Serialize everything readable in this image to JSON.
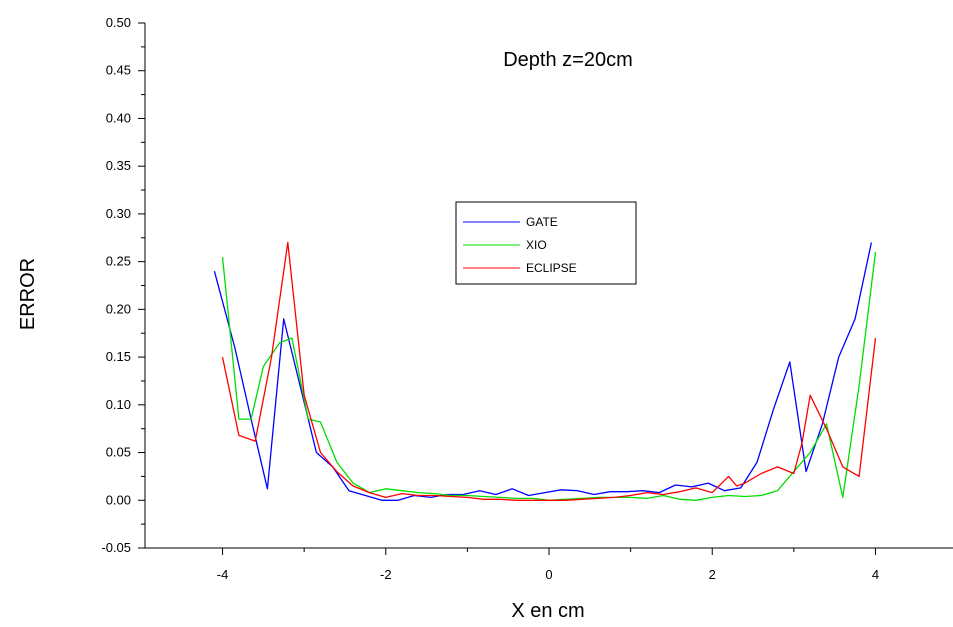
{
  "chart_data": {
    "type": "line",
    "annotation": "Depth z=20cm",
    "xlabel": "X en cm",
    "ylabel": "ERROR",
    "xlim": [
      -4.95,
      4.95
    ],
    "ylim": [
      -0.05,
      0.5
    ],
    "xticks": [
      -4,
      -2,
      0,
      2,
      4
    ],
    "xtick_labels": [
      "-4",
      "-2",
      "0",
      "2",
      "4"
    ],
    "yticks": [
      -0.05,
      0.0,
      0.05,
      0.1,
      0.15,
      0.2,
      0.25,
      0.3,
      0.35,
      0.4,
      0.45,
      0.5
    ],
    "ytick_labels": [
      "-0.05",
      "0.00",
      "0.05",
      "0.10",
      "0.15",
      "0.20",
      "0.25",
      "0.30",
      "0.35",
      "0.40",
      "0.45",
      "0.50"
    ],
    "grid": false,
    "legend_position": "center",
    "series": [
      {
        "name": "GATE",
        "color": "#0000ff",
        "x": [
          -4.1,
          -3.85,
          -3.65,
          -3.45,
          -3.25,
          -3.05,
          -2.85,
          -2.65,
          -2.45,
          -2.25,
          -2.05,
          -1.85,
          -1.65,
          -1.45,
          -1.25,
          -1.05,
          -0.85,
          -0.65,
          -0.45,
          -0.25,
          -0.05,
          0.15,
          0.35,
          0.55,
          0.75,
          0.95,
          1.15,
          1.35,
          1.55,
          1.75,
          1.95,
          2.15,
          2.35,
          2.55,
          2.75,
          2.95,
          3.15,
          3.35,
          3.55,
          3.75,
          3.95
        ],
        "y": [
          0.24,
          0.16,
          0.085,
          0.012,
          0.19,
          0.12,
          0.05,
          0.035,
          0.01,
          0.005,
          0.0,
          0.0,
          0.005,
          0.003,
          0.006,
          0.006,
          0.01,
          0.006,
          0.012,
          0.005,
          0.008,
          0.011,
          0.01,
          0.006,
          0.009,
          0.009,
          0.01,
          0.008,
          0.016,
          0.014,
          0.018,
          0.01,
          0.013,
          0.04,
          0.095,
          0.145,
          0.03,
          0.08,
          0.15,
          0.19,
          0.27
        ]
      },
      {
        "name": "XIO",
        "color": "#00dd00",
        "x": [
          -4.0,
          -3.8,
          -3.65,
          -3.5,
          -3.3,
          -3.15,
          -2.95,
          -2.8,
          -2.6,
          -2.4,
          -2.2,
          -2.0,
          -1.8,
          -1.6,
          -1.4,
          -1.2,
          -1.0,
          -0.8,
          -0.6,
          -0.4,
          -0.2,
          0.0,
          0.2,
          0.4,
          0.6,
          0.8,
          1.0,
          1.2,
          1.4,
          1.6,
          1.8,
          2.0,
          2.2,
          2.4,
          2.6,
          2.8,
          3.0,
          3.2,
          3.4,
          3.6,
          3.8,
          4.0
        ],
        "y": [
          0.255,
          0.085,
          0.085,
          0.14,
          0.165,
          0.17,
          0.085,
          0.082,
          0.04,
          0.018,
          0.008,
          0.012,
          0.01,
          0.008,
          0.007,
          0.005,
          0.005,
          0.004,
          0.003,
          0.002,
          0.002,
          0.0,
          0.001,
          0.002,
          0.003,
          0.003,
          0.003,
          0.002,
          0.005,
          0.001,
          0.0,
          0.003,
          0.005,
          0.004,
          0.005,
          0.01,
          0.03,
          0.05,
          0.08,
          0.003,
          0.12,
          0.26
        ]
      },
      {
        "name": "ECLIPSE",
        "color": "#ff0000",
        "x": [
          -4.0,
          -3.8,
          -3.6,
          -3.4,
          -3.2,
          -3.0,
          -2.8,
          -2.6,
          -2.4,
          -2.2,
          -2.0,
          -1.8,
          -1.6,
          -1.4,
          -1.2,
          -1.0,
          -0.8,
          -0.6,
          -0.4,
          -0.2,
          0.0,
          0.2,
          0.4,
          0.6,
          0.8,
          1.0,
          1.2,
          1.4,
          1.6,
          1.8,
          2.0,
          2.2,
          2.3,
          2.4,
          2.6,
          2.8,
          3.0,
          3.1,
          3.2,
          3.4,
          3.6,
          3.8,
          4.0
        ],
        "y": [
          0.15,
          0.068,
          0.062,
          0.15,
          0.27,
          0.11,
          0.05,
          0.03,
          0.015,
          0.008,
          0.003,
          0.007,
          0.005,
          0.005,
          0.004,
          0.003,
          0.001,
          0.001,
          0.0,
          0.0,
          0.0,
          0.0,
          0.001,
          0.002,
          0.003,
          0.005,
          0.008,
          0.006,
          0.009,
          0.013,
          0.008,
          0.025,
          0.015,
          0.018,
          0.028,
          0.035,
          0.028,
          0.06,
          0.11,
          0.075,
          0.035,
          0.025,
          0.17
        ]
      }
    ]
  }
}
